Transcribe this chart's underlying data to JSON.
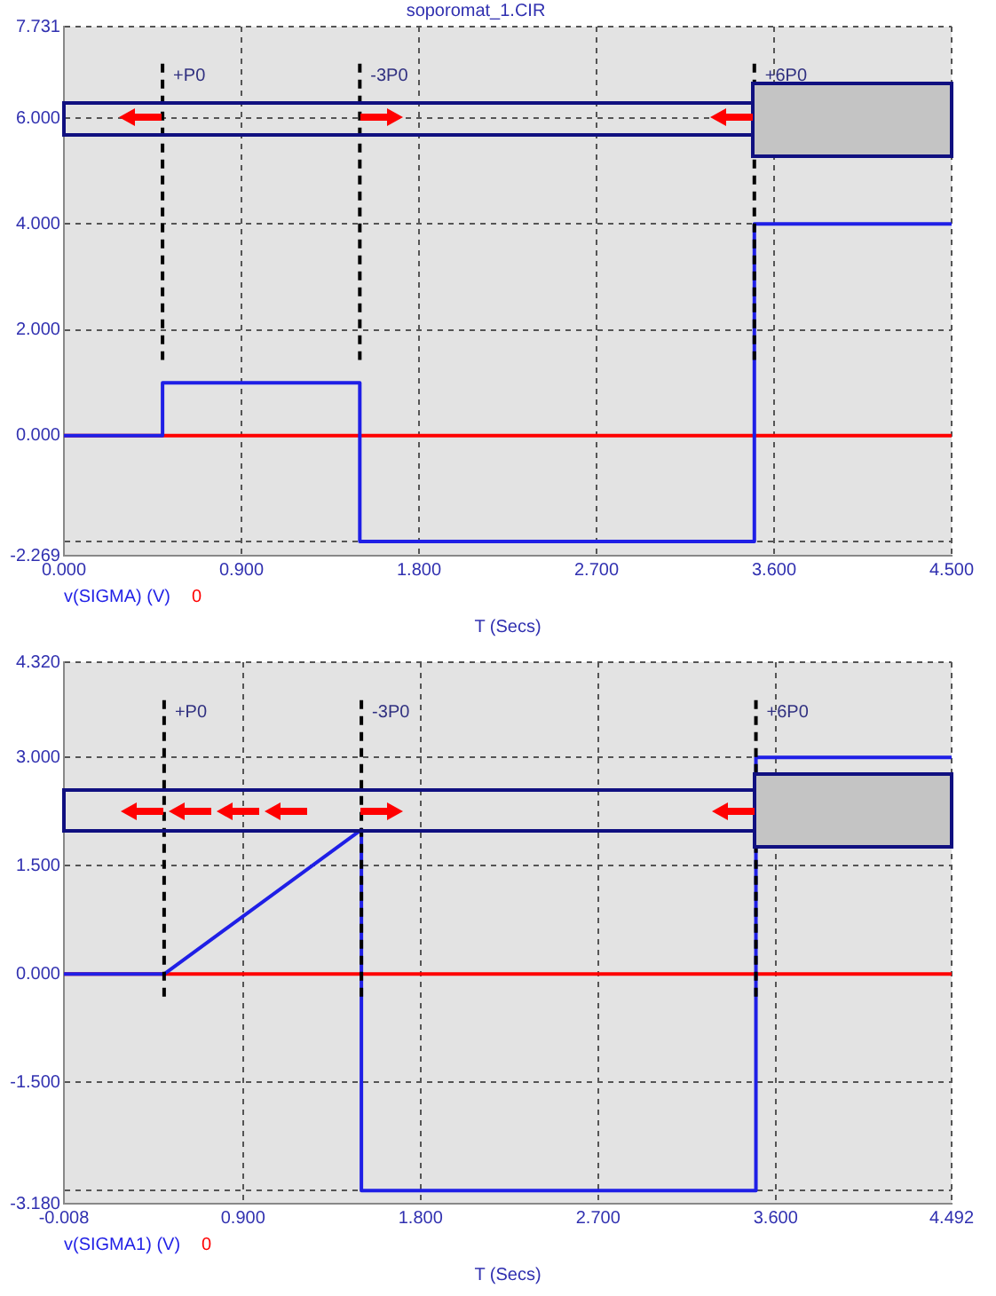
{
  "chart_data": [
    {
      "type": "step",
      "title": "soporomat_1.CIR",
      "xlabel": "T (Secs)",
      "xlim": [
        0,
        4.5
      ],
      "ylim": [
        -2.269,
        7.731
      ],
      "xticks": [
        {
          "value": 0,
          "label": "0.000"
        },
        {
          "value": 0.9,
          "label": "0.900"
        },
        {
          "value": 1.8,
          "label": "1.800"
        },
        {
          "value": 2.7,
          "label": "2.700"
        },
        {
          "value": 3.6,
          "label": "3.600"
        },
        {
          "value": 4.5,
          "label": "4.500"
        }
      ],
      "yticks": [
        {
          "value": -2.269,
          "label": "-2.269"
        },
        {
          "value": -2,
          "label": null
        },
        {
          "value": 0,
          "label": "0.000"
        },
        {
          "value": 2,
          "label": "2.000"
        },
        {
          "value": 4,
          "label": "4.000"
        },
        {
          "value": 6,
          "label": "6.000"
        },
        {
          "value": 7.731,
          "label": "7.731"
        }
      ],
      "series": [
        {
          "name": "v(SIGMA) (V)",
          "color": "#1f1fe6",
          "x": [
            0,
            0.5,
            1.5,
            3.5,
            4.5
          ],
          "values": [
            0,
            1,
            -2,
            4,
            4
          ]
        },
        {
          "name": "0",
          "color": "#ff0000",
          "x": [
            0,
            4.5
          ],
          "values": [
            0,
            0
          ]
        }
      ],
      "ref_lines": [
        {
          "axis": "x",
          "value": 0.5,
          "label": "+P0",
          "color": "#000000",
          "line_style": "dashed"
        },
        {
          "axis": "x",
          "value": 1.5,
          "label": "-3P0",
          "color": "#000000",
          "line_style": "dashed"
        },
        {
          "axis": "x",
          "value": 3.5,
          "label": "+6P0",
          "color": "#000000",
          "line_style": "dashed"
        }
      ],
      "grid": true,
      "legend": "bottom left",
      "marker": "none"
    },
    {
      "type": "line",
      "xlabel": "T (Secs)",
      "xlim": [
        -0.008,
        4.492
      ],
      "ylim": [
        -3.18,
        4.32
      ],
      "xticks": [
        {
          "value": -0.008,
          "label": "-0.008"
        },
        {
          "value": 0.9,
          "label": "0.900"
        },
        {
          "value": 1.8,
          "label": "1.800"
        },
        {
          "value": 2.7,
          "label": "2.700"
        },
        {
          "value": 3.6,
          "label": "3.600"
        },
        {
          "value": 4.492,
          "label": "4.492"
        }
      ],
      "yticks": [
        {
          "value": -3.18,
          "label": "-3.180"
        },
        {
          "value": -3,
          "label": null
        },
        {
          "value": -1.5,
          "label": "-1.500"
        },
        {
          "value": 0,
          "label": "0.000"
        },
        {
          "value": 1.5,
          "label": "1.500"
        },
        {
          "value": 3,
          "label": "3.000"
        },
        {
          "value": 4.32,
          "label": "4.320"
        }
      ],
      "series": [
        {
          "name": "v(SIGMA1) (V)",
          "color": "#1f1fe6",
          "x": [
            -0.008,
            0.5,
            1.5,
            1.5,
            3.5,
            3.5,
            4.492
          ],
          "values": [
            0,
            0,
            2,
            -3,
            -3,
            3,
            3
          ]
        },
        {
          "name": "0",
          "color": "#ff0000",
          "x": [
            -0.008,
            4.492
          ],
          "values": [
            0,
            0
          ]
        }
      ],
      "ref_lines": [
        {
          "axis": "x",
          "value": 0.5,
          "label": "+P0",
          "color": "#000000",
          "line_style": "dashed"
        },
        {
          "axis": "x",
          "value": 1.5,
          "label": "-3P0",
          "color": "#000000",
          "line_style": "dashed"
        },
        {
          "axis": "x",
          "value": 3.5,
          "label": "+6P0",
          "color": "#000000",
          "line_style": "dashed"
        }
      ],
      "grid": true,
      "legend": "bottom left",
      "marker": "none"
    }
  ]
}
